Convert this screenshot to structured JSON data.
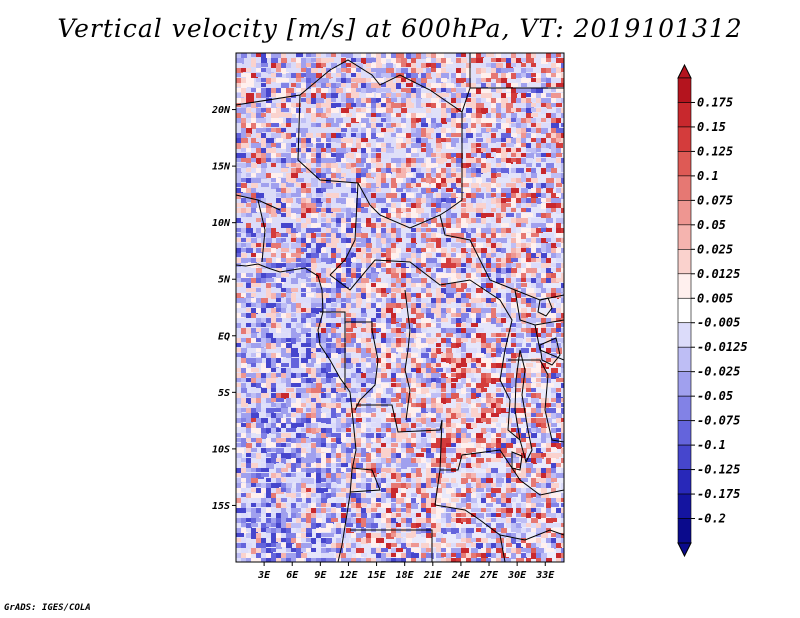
{
  "title": "Vertical velocity [m/s] at 600hPa, VT: 2019101312",
  "footer": "GrADS: IGES/COLA",
  "map": {
    "lon_range": [
      0,
      35
    ],
    "lat_range": [
      -20,
      25
    ],
    "lat_ticks": [
      "20N",
      "15N",
      "10N",
      "5N",
      "EQ",
      "5S",
      "10S",
      "15S"
    ],
    "lat_tick_values": [
      20,
      15,
      10,
      5,
      0,
      -5,
      -10,
      -15
    ],
    "lon_ticks": [
      "3E",
      "6E",
      "9E",
      "12E",
      "15E",
      "18E",
      "21E",
      "24E",
      "27E",
      "30E",
      "33E"
    ],
    "lon_tick_values": [
      3,
      6,
      9,
      12,
      15,
      18,
      21,
      24,
      27,
      30,
      33
    ]
  },
  "colorbar": {
    "labels": [
      "0.175",
      "0.15",
      "0.125",
      "0.1",
      "0.075",
      "0.05",
      "0.025",
      "0.0125",
      "0.005",
      "-0.005",
      "-0.0125",
      "-0.025",
      "-0.05",
      "-0.075",
      "-0.1",
      "-0.125",
      "-0.175",
      "-0.2"
    ],
    "colors": [
      "#b4141e",
      "#c8282d",
      "#d43c3c",
      "#de5a55",
      "#e67873",
      "#ee9691",
      "#f5b4af",
      "#fad2cd",
      "#fff0ee",
      "#ffffff",
      "#dcdcfa",
      "#bebef5",
      "#a0a0ee",
      "#8282e6",
      "#6464dc",
      "#4646cd",
      "#2828b9",
      "#1414a0",
      "#0a0a8c"
    ]
  }
}
